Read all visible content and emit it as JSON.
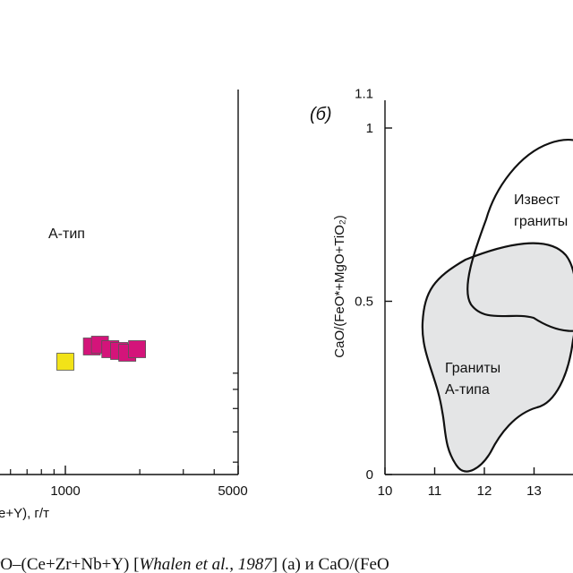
{
  "chart_data": [
    {
      "type": "scatter",
      "x_scale": "log",
      "xlim": [
        500,
        5000
      ],
      "x_ticks_labeled": [
        "1000",
        "5000"
      ],
      "xlabel_visible_fragment": "e+Y),  г/т",
      "region_labels": [
        "А-тип"
      ],
      "series": [
        {
          "color": "#f2e318",
          "points": [
            [
              1000,
              null
            ]
          ]
        },
        {
          "color": "#d4147a",
          "points": [
            [
              1280,
              null
            ],
            [
              1380,
              null
            ],
            [
              1520,
              null
            ],
            [
              1650,
              null
            ],
            [
              1780,
              null
            ],
            [
              1950,
              null
            ]
          ]
        }
      ]
    },
    {
      "type": "scatter",
      "panel_label": "(б)",
      "xlim": [
        10,
        14
      ],
      "ylim": [
        0,
        1.1
      ],
      "x_ticks": [
        "10",
        "11",
        "12",
        "13"
      ],
      "y_ticks": [
        "0",
        "0.5",
        "1",
        "1.1"
      ],
      "ylabel": "CaO/(FeO*+MgO+TiO₂)",
      "fields": [
        {
          "name": "Известковые граниты",
          "visible_lines": [
            "Извест",
            "граниты"
          ],
          "fill": "none"
        },
        {
          "name": "Граниты А-типа",
          "visible_lines": [
            "Граниты",
            "А-типа"
          ],
          "fill": "#e4e5e6"
        }
      ]
    }
  ],
  "caption": {
    "text": "rO–(Ce+Zr+Nb+Y) [Whalen et al., 1987] (а) и CaO/(FeO",
    "prefix": "rO–(Ce+Zr+Nb+Y) [",
    "authors": "Whalen et al., 1987",
    "suffix": "] (а) и CaO/(FeO"
  }
}
